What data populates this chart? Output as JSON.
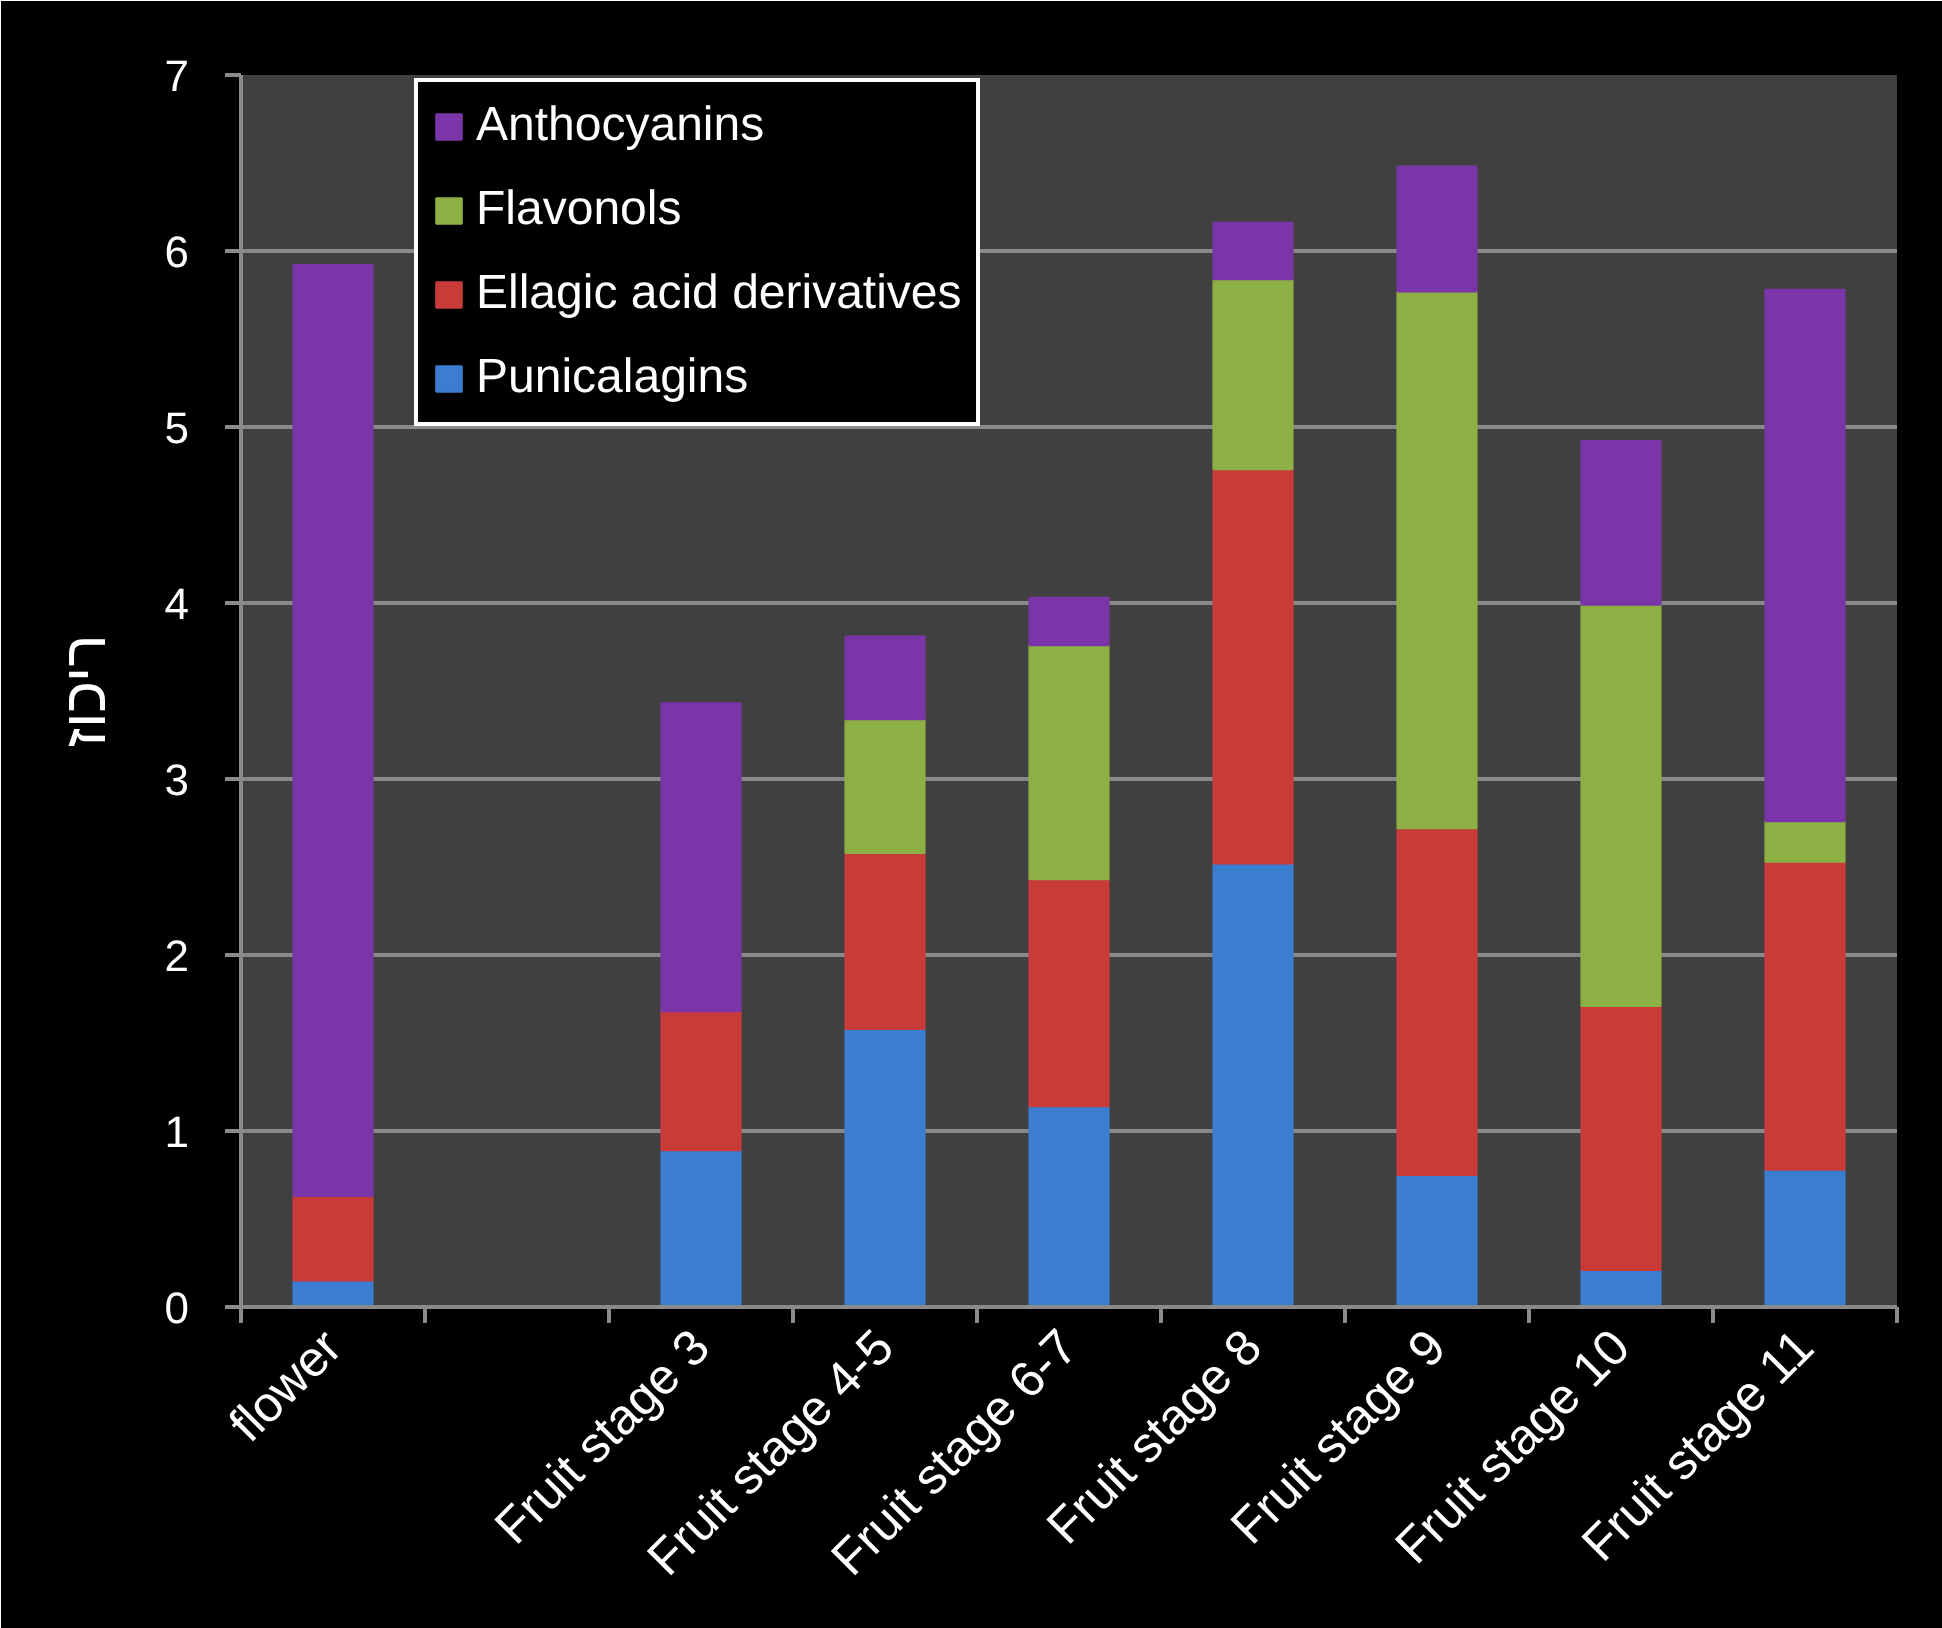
{
  "chart_data": {
    "type": "bar",
    "stacked": true,
    "ylabel": "ריכוז",
    "categories": [
      "flower",
      null,
      "Fruit stage 3",
      "Fruit stage 4-5",
      "Fruit stage 6-7",
      "Fruit stage 8",
      "Fruit stage 9",
      "Fruit stage 10",
      "Fruit stage 11"
    ],
    "series": [
      {
        "name": "Punicalagins",
        "color": "#3b7dd0",
        "values": [
          0.15,
          null,
          0.89,
          1.58,
          1.14,
          2.52,
          0.75,
          0.21,
          0.78
        ]
      },
      {
        "name": "Ellagic acid derivatives",
        "color": "#c83b38",
        "values": [
          0.48,
          null,
          0.79,
          1.0,
          1.29,
          2.24,
          1.97,
          1.5,
          1.75
        ]
      },
      {
        "name": "Flavonols",
        "color": "#8cb043",
        "values": [
          null,
          null,
          null,
          0.76,
          1.33,
          1.08,
          3.05,
          2.28,
          0.23
        ]
      },
      {
        "name": "Anthocyanins",
        "color": "#7a36a8",
        "values": [
          5.29,
          null,
          1.75,
          0.47,
          0.27,
          0.32,
          0.71,
          0.93,
          3.02
        ]
      }
    ],
    "ylim": [
      0,
      7
    ],
    "yticks": [
      0,
      1,
      2,
      3,
      4,
      5,
      6,
      7
    ],
    "grid": "y",
    "legend": "top left"
  }
}
